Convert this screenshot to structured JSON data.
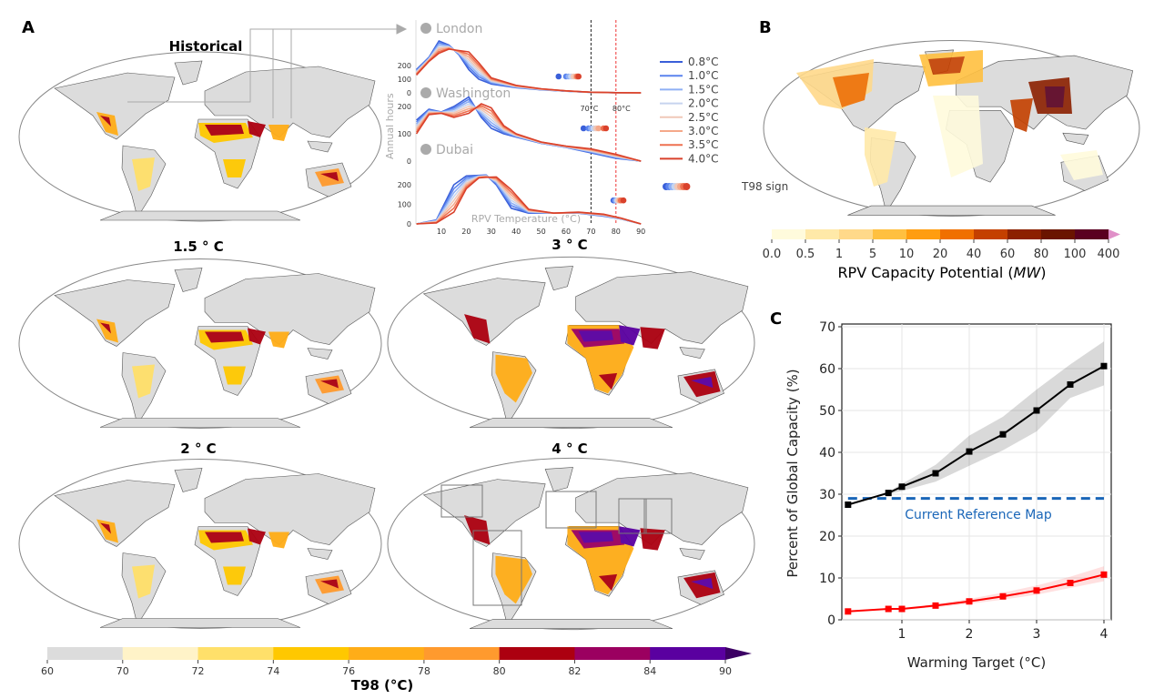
{
  "panels": {
    "a": "A",
    "b": "B",
    "c": "C"
  },
  "maps": {
    "historical": "Historical",
    "w15": "1.5 ° C",
    "w2": "2 ° C",
    "w3": "3 ° C",
    "w4": "4 ° C",
    "land_color": "#dcdcdc"
  },
  "t98_colorbar": {
    "title": "T98 (°C)",
    "ticks": [
      "60",
      "70",
      "72",
      "74",
      "76",
      "78",
      "80",
      "82",
      "84",
      "90"
    ],
    "colors": [
      "#dcdcdc",
      "#fff3c8",
      "#ffe06a",
      "#ffc800",
      "#ffad18",
      "#ff9a2e",
      "#ac0010",
      "#9b0060",
      "#5a00a0"
    ],
    "extend_color": "#3c0064"
  },
  "rpv_colorbar": {
    "title": "RPV Capacity Potential (",
    "title_unit": "MW",
    "title_end": ")",
    "ticks": [
      "0.0",
      "0.5",
      "1",
      "5",
      "10",
      "20",
      "40",
      "60",
      "80",
      "100",
      "400"
    ],
    "colors": [
      "#fffbdc",
      "#ffe9a8",
      "#ffd98a",
      "#ffc040",
      "#ff9d10",
      "#f07000",
      "#c44000",
      "#8c2000",
      "#6a1400",
      "#5a0020"
    ],
    "extend_color": "#e090c8"
  },
  "chart_data": [
    {
      "type": "line",
      "xlabel": "RPV Temperature (°C)",
      "ylabel": "Annual hours",
      "xlim": [
        0,
        90
      ],
      "xticks": [
        "10",
        "20",
        "30",
        "40",
        "50",
        "60",
        "70",
        "80",
        "90"
      ],
      "yticks": [
        "0",
        "100",
        "200"
      ],
      "threshold_labels": [
        "70°C",
        "80°C"
      ],
      "thresholds": [
        70,
        80
      ],
      "series_names": [
        "0.8°C",
        "1.0°C",
        "1.5°C",
        "2.0°C",
        "2.5°C",
        "3.0°C",
        "3.5°C",
        "4.0°C"
      ],
      "series_colors": [
        "#3a5fd9",
        "#5b84ee",
        "#8fb0f5",
        "#c6d4ef",
        "#f0c8b8",
        "#f5a88a",
        "#ee7050",
        "#d9412b"
      ],
      "t98_sign_label": "T98 sign",
      "cities": [
        {
          "name": "London",
          "x": [
            0,
            5,
            9,
            13,
            17,
            21,
            25,
            30,
            40,
            50,
            60,
            70,
            80,
            90
          ],
          "y_low": [
            170,
            260,
            380,
            350,
            280,
            170,
            100,
            65,
            38,
            22,
            12,
            4,
            1,
            0
          ],
          "y_high": [
            130,
            230,
            290,
            320,
            310,
            300,
            220,
            110,
            55,
            30,
            15,
            5,
            1,
            0
          ],
          "t98": [
            57,
            60,
            61,
            62,
            63,
            64,
            64.5,
            65
          ]
        },
        {
          "name": "Washington",
          "x": [
            0,
            5,
            10,
            15,
            21,
            26,
            30,
            35,
            40,
            50,
            60,
            70,
            80,
            90
          ],
          "y_low": [
            150,
            190,
            180,
            200,
            235,
            160,
            120,
            100,
            88,
            65,
            50,
            30,
            10,
            0
          ],
          "y_high": [
            100,
            170,
            175,
            160,
            175,
            210,
            195,
            130,
            100,
            70,
            55,
            45,
            25,
            0
          ],
          "t98": [
            67,
            69,
            70,
            71,
            72,
            73,
            75,
            76
          ]
        },
        {
          "name": "Dubai",
          "x": [
            0,
            8,
            15,
            20,
            25,
            28,
            32,
            38,
            45,
            55,
            65,
            75,
            82,
            90
          ],
          "y_low": [
            0,
            20,
            200,
            245,
            248,
            250,
            200,
            80,
            55,
            55,
            55,
            40,
            25,
            0
          ],
          "y_high": [
            0,
            5,
            60,
            180,
            235,
            238,
            240,
            175,
            75,
            55,
            60,
            50,
            30,
            0
          ],
          "t98": [
            79,
            79.5,
            80,
            80.5,
            81,
            81.5,
            82,
            83
          ]
        }
      ]
    },
    {
      "type": "line",
      "xlabel": "Warming Target (°C)",
      "ylabel": "Percent of Global Capacity (%)",
      "xlim": [
        0.15,
        4.1
      ],
      "ylim": [
        0,
        70
      ],
      "xticks": [
        "1",
        "2",
        "3",
        "4"
      ],
      "yticks": [
        "0",
        "10",
        "20",
        "30",
        "40",
        "50",
        "60",
        "70"
      ],
      "grid": true,
      "x": [
        0.2,
        0.8,
        1.0,
        1.5,
        2.0,
        2.5,
        3.0,
        3.5,
        4.0
      ],
      "series": [
        {
          "color": "#000000",
          "values": [
            27.5,
            30.3,
            31.8,
            35.0,
            40.2,
            44.3,
            50.0,
            56.2,
            60.6
          ],
          "lower": [
            27.5,
            30.0,
            30.8,
            33.0,
            36.8,
            40.5,
            45.0,
            53.0,
            56.0
          ],
          "upper": [
            27.5,
            30.6,
            32.5,
            37.0,
            44.0,
            48.5,
            55.0,
            61.0,
            66.5
          ]
        },
        {
          "color": "#ff0000",
          "values": [
            2.0,
            2.6,
            2.6,
            3.4,
            4.4,
            5.6,
            7.0,
            8.8,
            10.8
          ],
          "lower": [
            2.0,
            2.4,
            2.4,
            3.0,
            3.8,
            4.8,
            6.0,
            7.6,
            9.2
          ],
          "upper": [
            2.0,
            2.8,
            2.8,
            3.8,
            5.0,
            6.5,
            8.2,
            10.3,
            12.8
          ]
        }
      ],
      "reference": {
        "label": "Current Reference Map",
        "value": 29,
        "color": "#1a66b8"
      }
    }
  ]
}
